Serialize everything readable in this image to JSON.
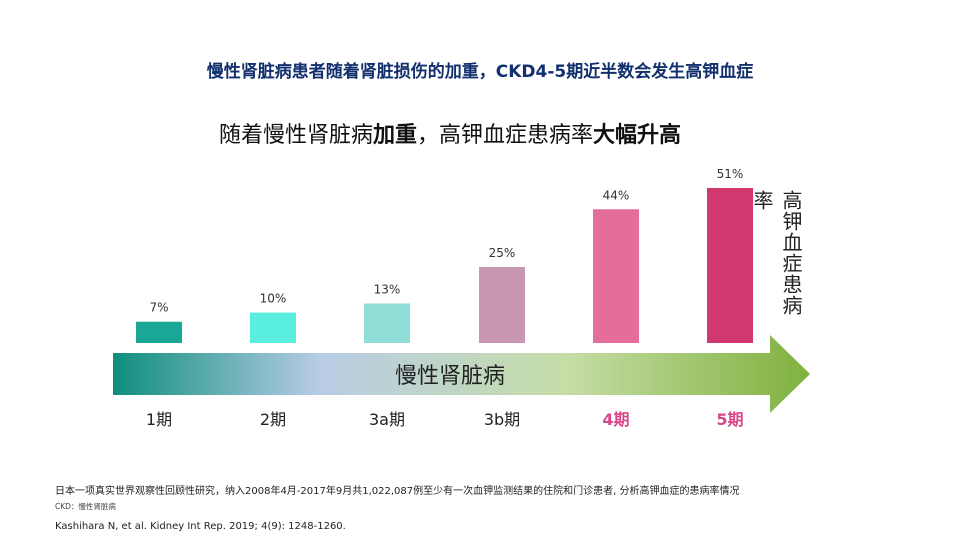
{
  "title": "慢性肾脏病患者随着肾脏损伤的加重，CKD4-5期近半数会发生高钾血症",
  "subtitle": {
    "part1": "随着慢性肾脏病",
    "part2": "加重",
    "part3": "，高钾血症患病率",
    "part4": "大幅升高"
  },
  "arrow_label": "慢性肾脏病",
  "footnote": "日本一项真实世界观察性回顾性研究，纳入2008年4月-2017年9月共1,022,087例至少有一次血钾监测结果的住院和门诊患者, 分析高钾血症的患病率情况",
  "abbrev": "CKD：慢性肾脏病",
  "reference": "Kashihara N, et al. Kidney Int Rep. 2019; 4(9): 1248-1260.",
  "chart_data": {
    "type": "bar",
    "ylabel": "高钾血症患病率",
    "categories": [
      "1期",
      "2期",
      "3a期",
      "3b期",
      "4期",
      "5期"
    ],
    "values": [
      7,
      10,
      13,
      25,
      44,
      51
    ],
    "value_labels": [
      "7%",
      "10%",
      "13%",
      "25%",
      "44%",
      "51%"
    ],
    "colors": [
      "#1aa796",
      "#59eedd",
      "#91ddd7",
      "#c897b2",
      "#e46d9b",
      "#d0396f"
    ],
    "category_colors": [
      "#222222",
      "#222222",
      "#222222",
      "#222222",
      "#d9468a",
      "#d9468a"
    ],
    "ylim": [
      0,
      51
    ]
  }
}
